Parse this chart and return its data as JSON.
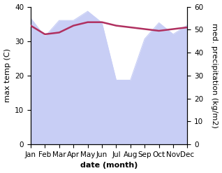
{
  "months": [
    "Jan",
    "Feb",
    "Mar",
    "Apr",
    "May",
    "Jun",
    "Jul",
    "Aug",
    "Sep",
    "Oct",
    "Nov",
    "Dec"
  ],
  "max_temp": [
    34.5,
    32.0,
    32.5,
    34.5,
    35.5,
    35.5,
    34.5,
    34.0,
    33.5,
    33.0,
    33.5,
    34.0
  ],
  "precipitation": [
    55.0,
    47.0,
    54.0,
    54.0,
    58.0,
    53.0,
    28.0,
    28.0,
    46.0,
    53.0,
    48.0,
    52.0
  ],
  "temp_color": "#b03060",
  "precip_fill_color": "#c8cef5",
  "ylabel_left": "max temp (C)",
  "ylabel_right": "med. precipitation (kg/m2)",
  "xlabel": "date (month)",
  "ylim_left": [
    0,
    40
  ],
  "ylim_right": [
    0,
    60
  ],
  "yticks_left": [
    0,
    10,
    20,
    30,
    40
  ],
  "yticks_right": [
    0,
    10,
    20,
    30,
    40,
    50,
    60
  ],
  "bg_color": "#ffffff",
  "font_size_labels": 8,
  "font_size_ticks": 7.5
}
